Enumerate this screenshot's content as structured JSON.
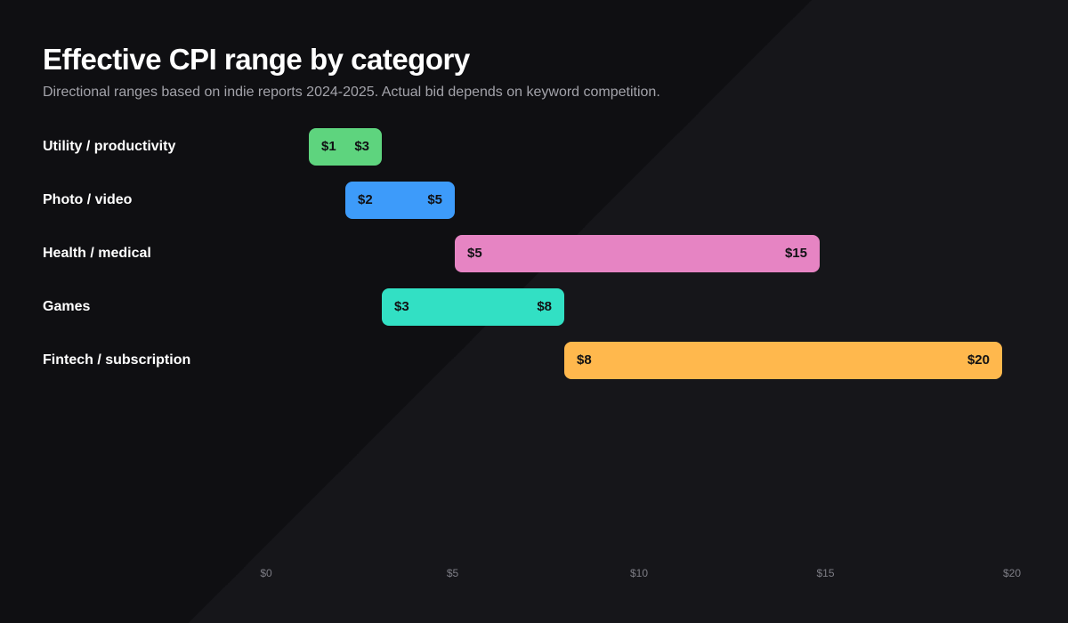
{
  "header": {
    "title": "Effective CPI range by category",
    "subtitle": "Directional ranges based on indie reports 2024-2025. Actual bid depends on keyword competition."
  },
  "chart_data": {
    "type": "bar",
    "orientation": "horizontal-range",
    "title": "Effective CPI range by category",
    "subtitle": "Directional ranges based on indie reports 2024-2025. Actual bid depends on keyword competition.",
    "xlabel": "",
    "ylabel": "",
    "xlim": [
      0,
      20
    ],
    "x_ticks": [
      {
        "value": 0,
        "label": "$0"
      },
      {
        "value": 5,
        "label": "$5"
      },
      {
        "value": 10,
        "label": "$10"
      },
      {
        "value": 15,
        "label": "$15"
      },
      {
        "value": 20,
        "label": "$20"
      }
    ],
    "grid": false,
    "legend": "none",
    "categories": [
      "Utility / productivity",
      "Photo / video",
      "Health / medical",
      "Games",
      "Fintech / subscription"
    ],
    "ranges": [
      {
        "category": "Utility / productivity",
        "low": 1,
        "high": 3,
        "low_label": "$1",
        "high_label": "$3",
        "color": "#5ed47e"
      },
      {
        "category": "Photo / video",
        "low": 2,
        "high": 5,
        "low_label": "$2",
        "high_label": "$5",
        "color": "#3d9bfa"
      },
      {
        "category": "Health / medical",
        "low": 5,
        "high": 15,
        "low_label": "$5",
        "high_label": "$15",
        "color": "#e684c3"
      },
      {
        "category": "Games",
        "low": 3,
        "high": 8,
        "low_label": "$3",
        "high_label": "$8",
        "color": "#32e0c4"
      },
      {
        "category": "Fintech / subscription",
        "low": 8,
        "high": 20,
        "low_label": "$8",
        "high_label": "$20",
        "color": "#ffb84d"
      }
    ]
  }
}
